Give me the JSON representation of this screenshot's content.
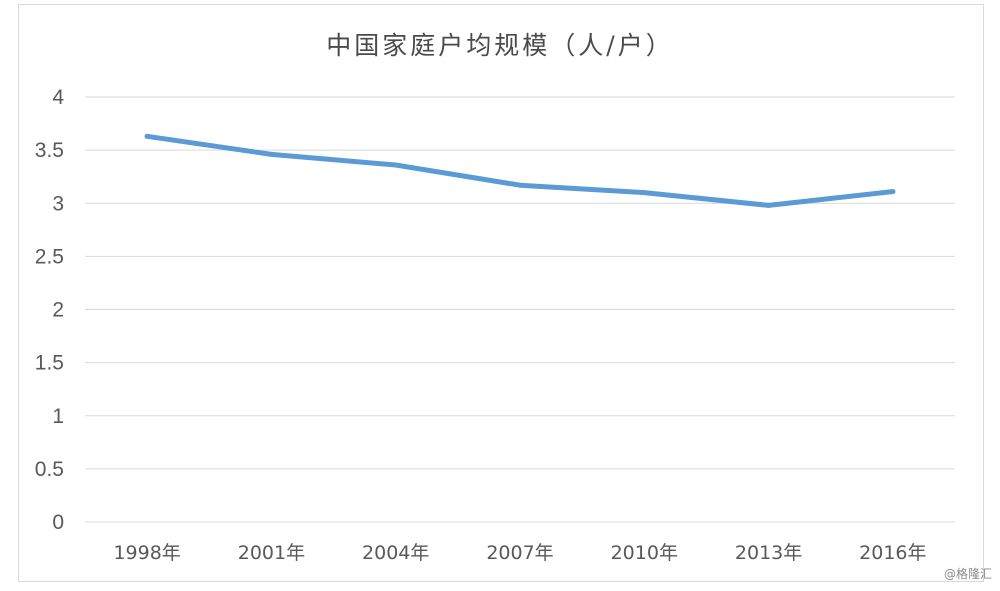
{
  "chart_data": {
    "type": "line",
    "title": "中国家庭户均规模（人/户）",
    "xlabel": "",
    "ylabel": "",
    "categories": [
      "1998年",
      "2001年",
      "2004年",
      "2007年",
      "2010年",
      "2013年",
      "2016年"
    ],
    "series": [
      {
        "values": [
          3.63,
          3.46,
          3.36,
          3.17,
          3.1,
          2.98,
          3.11
        ],
        "color": "#5B9BD5"
      }
    ],
    "ylim": [
      0,
      4
    ],
    "yticks": [
      "0",
      "0.5",
      "1",
      "1.5",
      "2",
      "2.5",
      "3",
      "3.5",
      "4"
    ],
    "grid": true,
    "legend": "none"
  },
  "watermark": "@格隆汇"
}
